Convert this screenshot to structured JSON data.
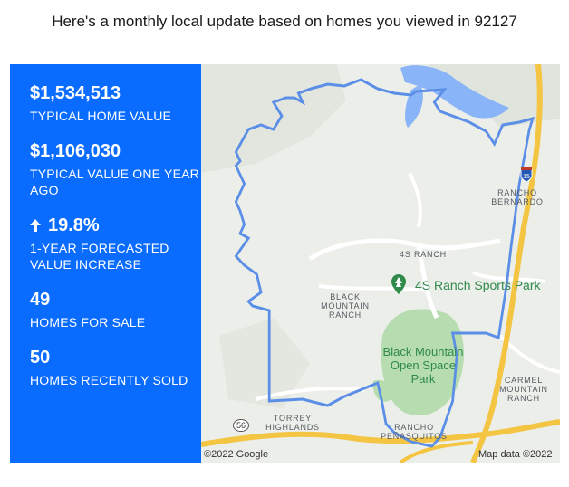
{
  "header": {
    "text": "Here's a monthly local update based on homes you viewed in 92127"
  },
  "stats": [
    {
      "value": "$1,534,513",
      "label": "TYPICAL HOME VALUE"
    },
    {
      "value": "$1,106,030",
      "label": "TYPICAL VALUE ONE YEAR AGO"
    },
    {
      "value": "19.8%",
      "label": "1-YEAR FORECASTED VALUE INCREASE",
      "icon": "arrow-up-icon"
    },
    {
      "value": "49",
      "label": "HOMES FOR SALE"
    },
    {
      "value": "50",
      "label": "HOMES RECENTLY SOLD"
    }
  ],
  "map": {
    "labels": {
      "rancho_bernardo": "RANCHO BERNARDO",
      "fours_ranch": "4S RANCH",
      "black_mountain_ranch": "BLACK MOUNTAIN RANCH",
      "carmel_mountain_ranch": "CARMEL MOUNTAIN RANCH",
      "torrey_highlands": "TORREY HIGHLANDS",
      "rancho_penasquitos": "RANCHO PEÑASQUITOS"
    },
    "park_name": "Black Mountain Open Space Park",
    "poi_name": "4S Ranch Sports Park",
    "highway_15": "15",
    "highway_56": "56",
    "attribution_left": "©2022 Google",
    "attribution_right": "Map data ©2022",
    "colors": {
      "boundary": "#5b8ee6",
      "water": "#8ab4f8",
      "park": "#b6dcb0",
      "highway": "#f4c542"
    }
  }
}
